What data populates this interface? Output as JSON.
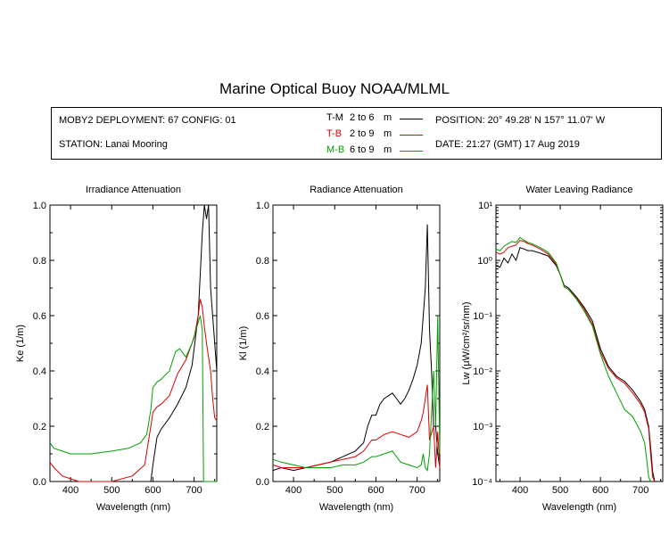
{
  "title": "Marine Optical Buoy NOAA/MLML",
  "info": {
    "deployment": "MOBY2 DEPLOYMENT: 67 CONFIG: 01",
    "station": "STATION: Lanai Mooring",
    "position": "POSITION: 20° 49.28' N   157° 11.07' W",
    "date": "DATE: 21:27 (GMT) 17 Aug 2019"
  },
  "legend": [
    {
      "code": "T-M",
      "range": "2 to 6",
      "unit": "m",
      "color": "#000000"
    },
    {
      "code": "T-B",
      "range": "2 to 9",
      "unit": "m",
      "color": "#dd0000"
    },
    {
      "code": "M-B",
      "range": "6 to 9",
      "unit": "m",
      "color": "#00a000"
    }
  ],
  "chart_data": [
    {
      "type": "line",
      "title": "Irradiance Attenuation",
      "xlabel": "Wavelength (nm)",
      "ylabel": "Ke  (1/m)",
      "xlim": [
        350,
        755
      ],
      "ylim": [
        0,
        1.0
      ],
      "xticks": [
        400,
        500,
        600,
        700
      ],
      "yticks": [
        0.0,
        0.2,
        0.4,
        0.6,
        0.8,
        1.0
      ],
      "ytick_labels": [
        "0.0",
        "0.2",
        "0.4",
        "0.6",
        "0.8",
        "1.0"
      ],
      "series": [
        {
          "name": "T-M",
          "color": "#000000",
          "x": [
            595,
            600,
            610,
            620,
            640,
            660,
            680,
            695,
            705,
            710,
            715,
            720,
            725,
            730,
            735,
            740,
            745,
            750,
            755
          ],
          "y": [
            0.0,
            0.06,
            0.16,
            0.19,
            0.23,
            0.28,
            0.34,
            0.42,
            0.54,
            0.6,
            0.75,
            0.9,
            1.0,
            0.95,
            1.0,
            0.7,
            0.6,
            0.5,
            0.4
          ]
        },
        {
          "name": "T-B",
          "color": "#dd0000",
          "x": [
            350,
            360,
            380,
            400,
            420,
            450,
            500,
            550,
            580,
            595,
            600,
            610,
            620,
            640,
            660,
            680,
            700,
            710,
            715,
            720,
            725,
            730,
            740,
            745,
            750,
            755
          ],
          "y": [
            0.07,
            0.05,
            0.02,
            0.01,
            0.0,
            0.0,
            0.0,
            0.02,
            0.06,
            0.2,
            0.25,
            0.27,
            0.28,
            0.31,
            0.39,
            0.44,
            0.52,
            0.6,
            0.66,
            0.63,
            0.56,
            0.5,
            0.4,
            0.3,
            0.23,
            0.22
          ]
        },
        {
          "name": "M-B",
          "color": "#00a000",
          "x": [
            350,
            360,
            380,
            400,
            420,
            450,
            500,
            540,
            570,
            585,
            595,
            600,
            610,
            620,
            640,
            655,
            665,
            680,
            695,
            705,
            715,
            720,
            723,
            726,
            730,
            735,
            740,
            745,
            750,
            755
          ],
          "y": [
            0.14,
            0.12,
            0.11,
            0.1,
            0.1,
            0.1,
            0.11,
            0.12,
            0.14,
            0.17,
            0.26,
            0.34,
            0.36,
            0.37,
            0.4,
            0.47,
            0.48,
            0.45,
            0.5,
            0.55,
            0.6,
            0.55,
            0.0,
            0.0,
            0.0,
            0.0,
            0.0,
            0.0,
            0.0,
            0.0
          ]
        }
      ]
    },
    {
      "type": "line",
      "title": "Radiance Attenuation",
      "xlabel": "Wavelength (nm)",
      "ylabel": "Kl  (1/m)",
      "xlim": [
        350,
        755
      ],
      "ylim": [
        0,
        1.0
      ],
      "xticks": [
        400,
        500,
        600,
        700
      ],
      "yticks": [
        0.0,
        0.2,
        0.4,
        0.6,
        0.8,
        1.0
      ],
      "ytick_labels": [
        "0.0",
        "0.2",
        "0.4",
        "0.6",
        "0.8",
        "1.0"
      ],
      "series": [
        {
          "name": "T-M",
          "color": "#000000",
          "x": [
            350,
            370,
            400,
            430,
            460,
            490,
            520,
            550,
            570,
            580,
            590,
            600,
            610,
            620,
            630,
            640,
            650,
            660,
            670,
            680,
            690,
            700,
            710,
            715,
            720,
            725,
            730,
            735,
            740,
            745,
            750,
            755
          ],
          "y": [
            0.04,
            0.05,
            0.04,
            0.05,
            0.06,
            0.07,
            0.09,
            0.11,
            0.14,
            0.2,
            0.24,
            0.24,
            0.28,
            0.3,
            0.31,
            0.32,
            0.3,
            0.28,
            0.3,
            0.33,
            0.37,
            0.42,
            0.5,
            0.6,
            0.7,
            0.93,
            0.55,
            0.4,
            0.2,
            0.2,
            0.1,
            0.05
          ]
        },
        {
          "name": "T-B",
          "color": "#dd0000",
          "x": [
            350,
            370,
            400,
            430,
            460,
            490,
            520,
            550,
            570,
            590,
            600,
            620,
            640,
            660,
            680,
            700,
            710,
            715,
            720,
            725,
            730,
            740,
            745,
            750,
            755
          ],
          "y": [
            0.06,
            0.05,
            0.05,
            0.05,
            0.06,
            0.07,
            0.08,
            0.09,
            0.11,
            0.15,
            0.15,
            0.17,
            0.18,
            0.17,
            0.16,
            0.18,
            0.22,
            0.25,
            0.3,
            0.35,
            0.15,
            0.2,
            0.05,
            0.18,
            0.05
          ]
        },
        {
          "name": "M-B",
          "color": "#00a000",
          "x": [
            350,
            370,
            400,
            430,
            460,
            490,
            520,
            550,
            570,
            590,
            600,
            620,
            640,
            660,
            680,
            700,
            710,
            715,
            720,
            725,
            730,
            740,
            745,
            750,
            755
          ],
          "y": [
            0.08,
            0.07,
            0.06,
            0.05,
            0.05,
            0.05,
            0.06,
            0.06,
            0.07,
            0.09,
            0.09,
            0.1,
            0.11,
            0.07,
            0.06,
            0.05,
            0.06,
            0.1,
            0.05,
            0.04,
            0.1,
            0.4,
            0.2,
            0.6,
            0.1
          ]
        }
      ]
    },
    {
      "type": "line",
      "title": "Water Leaving Radiance",
      "xlabel": "Wavelength (nm)",
      "ylabel": "Lw  (μW/cm²/sr/nm)",
      "log_y": true,
      "xlim": [
        340,
        755
      ],
      "ylim": [
        0.0001,
        10
      ],
      "xticks": [
        400,
        500,
        600,
        700
      ],
      "yticks": [
        0.0001,
        0.001,
        0.01,
        0.1,
        1,
        10
      ],
      "ytick_labels": [
        "10⁻⁴",
        "10⁻³",
        "10⁻²",
        "10⁻¹",
        "10⁰",
        "10¹"
      ],
      "series": [
        {
          "name": "T-M",
          "color": "#000000",
          "x": [
            340,
            350,
            360,
            370,
            380,
            390,
            400,
            410,
            420,
            430,
            450,
            470,
            490,
            500,
            510,
            520,
            540,
            560,
            580,
            600,
            620,
            640,
            660,
            680,
            700,
            710,
            720,
            725,
            730,
            735
          ],
          "y": [
            0.8,
            0.75,
            1.1,
            0.9,
            1.3,
            1.0,
            1.7,
            1.6,
            1.5,
            1.5,
            1.35,
            1.2,
            0.8,
            0.55,
            0.35,
            0.32,
            0.22,
            0.14,
            0.08,
            0.025,
            0.012,
            0.008,
            0.0065,
            0.0045,
            0.0028,
            0.002,
            0.001,
            0.0004,
            0.00015,
            0.0001
          ]
        },
        {
          "name": "T-B",
          "color": "#dd0000",
          "x": [
            340,
            350,
            360,
            370,
            380,
            390,
            400,
            410,
            420,
            430,
            450,
            470,
            490,
            500,
            510,
            520,
            540,
            560,
            580,
            600,
            620,
            640,
            660,
            680,
            700,
            710,
            720,
            725,
            730,
            735
          ],
          "y": [
            1.4,
            1.3,
            1.4,
            1.7,
            1.8,
            1.9,
            2.3,
            2.2,
            2.0,
            1.9,
            1.6,
            1.3,
            0.85,
            0.55,
            0.33,
            0.3,
            0.21,
            0.13,
            0.07,
            0.022,
            0.011,
            0.0075,
            0.006,
            0.004,
            0.0025,
            0.0018,
            0.0009,
            0.0003,
            0.00012,
            0.0001
          ]
        },
        {
          "name": "M-B",
          "color": "#00a000",
          "x": [
            340,
            350,
            360,
            370,
            380,
            390,
            400,
            410,
            420,
            430,
            450,
            470,
            490,
            500,
            510,
            520,
            540,
            560,
            580,
            600,
            620,
            640,
            660,
            680,
            700,
            710,
            715,
            720,
            725
          ],
          "y": [
            1.6,
            1.5,
            1.8,
            2.0,
            2.2,
            2.1,
            2.6,
            2.3,
            2.1,
            2.0,
            1.7,
            1.4,
            0.9,
            0.55,
            0.33,
            0.3,
            0.2,
            0.12,
            0.065,
            0.02,
            0.008,
            0.004,
            0.002,
            0.0015,
            0.0008,
            0.0005,
            0.00025,
            0.00012,
            0.0001
          ]
        }
      ]
    }
  ]
}
